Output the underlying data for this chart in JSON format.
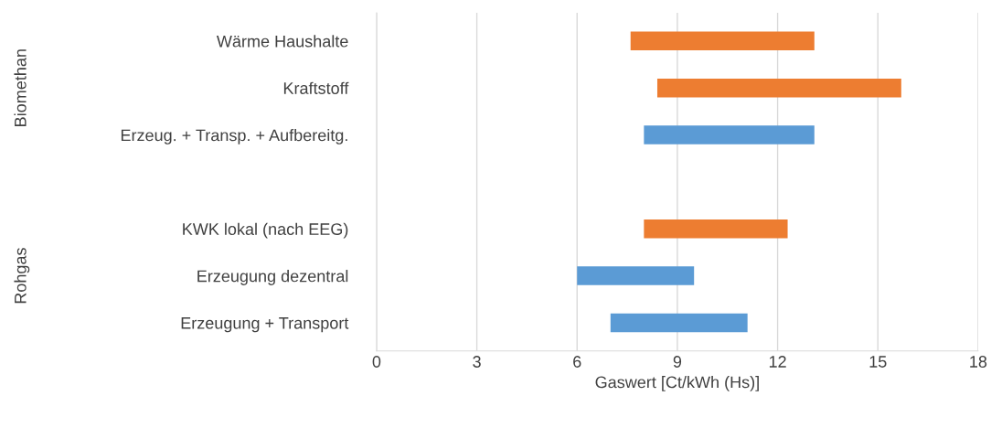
{
  "chart_data": {
    "type": "bar",
    "orientation": "horizontal",
    "xlabel": "Gaswert [Ct/kWh (Hs)]",
    "categories": [
      "Wärme Haushalte",
      "Kraftstoff",
      "Erzeug. + Transp. + Aufbereitg.",
      null,
      "KWK lokal (nach EEG)",
      "Erzeugung dezentral",
      "Erzeugung + Transport"
    ],
    "base": [
      7.6,
      8.4,
      8.0,
      null,
      8.0,
      6.0,
      7.0
    ],
    "values": [
      5.5,
      7.3,
      5.1,
      null,
      4.3,
      3.5,
      4.1
    ],
    "colors": [
      "#ed7d31",
      "#ed7d31",
      "#5b9bd5",
      null,
      "#ed7d31",
      "#5b9bd5",
      "#5b9bd5"
    ],
    "xlim": [
      0,
      18
    ],
    "xticks": [
      0,
      3,
      6,
      9,
      12,
      15,
      18
    ],
    "grid": "x",
    "annotations": [
      "Biomethan",
      "Rohgas"
    ]
  }
}
